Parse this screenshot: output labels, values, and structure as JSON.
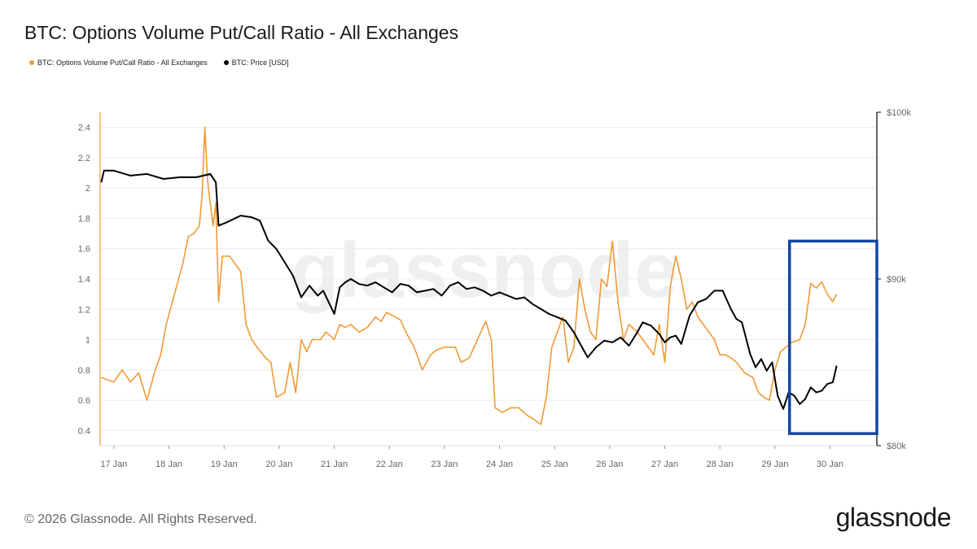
{
  "title": "BTC: Options Volume Put/Call Ratio - All Exchanges",
  "legend": {
    "ratio_label": "BTC: Options Volume Put/Call Ratio - All Exchanges",
    "price_label": "BTC: Price [USD]"
  },
  "watermark": "glassnode",
  "footer": {
    "copyright": "© 2026 Glassnode. All Rights Reserved.",
    "logo": "glassnode"
  },
  "colors": {
    "ratio": "#f09a37",
    "price": "#000000",
    "highlight": "#1546a0",
    "grid": "#ececec"
  },
  "chart_data": {
    "type": "line",
    "title": "BTC: Options Volume Put/Call Ratio - All Exchanges",
    "x_ticks": [
      "17 Jan",
      "18 Jan",
      "19 Jan",
      "20 Jan",
      "21 Jan",
      "22 Jan",
      "23 Jan",
      "24 Jan",
      "25 Jan",
      "26 Jan",
      "27 Jan",
      "28 Jan",
      "29 Jan",
      "30 Jan"
    ],
    "x_range": [
      16.75,
      30.85
    ],
    "y_left": {
      "label": "",
      "range": [
        0.3,
        2.5
      ],
      "ticks": [
        "0.4",
        "0.6",
        "0.8",
        "1",
        "1.2",
        "1.4",
        "1.6",
        "1.8",
        "2",
        "2.2",
        "2.4"
      ]
    },
    "y_right": {
      "label": "",
      "range": [
        80000,
        100000
      ],
      "ticks": [
        "$80k",
        "$90k",
        "$100k"
      ]
    },
    "highlight_box": {
      "x_range": [
        29.25,
        30.85
      ],
      "y_range": [
        0.38,
        1.65
      ],
      "note": "blue rectangle around latest data"
    },
    "series": [
      {
        "name": "BTC: Options Volume Put/Call Ratio - All Exchanges",
        "axis": "left",
        "points": [
          [
            16.77,
            0.75
          ],
          [
            17.0,
            0.72
          ],
          [
            17.15,
            0.8
          ],
          [
            17.3,
            0.72
          ],
          [
            17.45,
            0.78
          ],
          [
            17.6,
            0.6
          ],
          [
            17.75,
            0.8
          ],
          [
            17.85,
            0.9
          ],
          [
            17.95,
            1.1
          ],
          [
            18.1,
            1.3
          ],
          [
            18.25,
            1.5
          ],
          [
            18.35,
            1.68
          ],
          [
            18.45,
            1.7
          ],
          [
            18.55,
            1.75
          ],
          [
            18.6,
            1.95
          ],
          [
            18.65,
            2.4
          ],
          [
            18.7,
            2.05
          ],
          [
            18.8,
            1.75
          ],
          [
            18.85,
            1.9
          ],
          [
            18.9,
            1.25
          ],
          [
            18.97,
            1.55
          ],
          [
            19.1,
            1.55
          ],
          [
            19.2,
            1.5
          ],
          [
            19.3,
            1.45
          ],
          [
            19.4,
            1.1
          ],
          [
            19.5,
            1.0
          ],
          [
            19.6,
            0.95
          ],
          [
            19.75,
            0.88
          ],
          [
            19.85,
            0.85
          ],
          [
            19.95,
            0.62
          ],
          [
            20.1,
            0.65
          ],
          [
            20.2,
            0.85
          ],
          [
            20.3,
            0.65
          ],
          [
            20.4,
            1.0
          ],
          [
            20.5,
            0.92
          ],
          [
            20.6,
            1.0
          ],
          [
            20.75,
            1.0
          ],
          [
            20.85,
            1.05
          ],
          [
            21.0,
            1.0
          ],
          [
            21.1,
            1.1
          ],
          [
            21.2,
            1.08
          ],
          [
            21.3,
            1.1
          ],
          [
            21.45,
            1.05
          ],
          [
            21.6,
            1.08
          ],
          [
            21.75,
            1.15
          ],
          [
            21.85,
            1.12
          ],
          [
            21.95,
            1.18
          ],
          [
            22.1,
            1.15
          ],
          [
            22.2,
            1.13
          ],
          [
            22.3,
            1.05
          ],
          [
            22.45,
            0.95
          ],
          [
            22.6,
            0.8
          ],
          [
            22.75,
            0.9
          ],
          [
            22.85,
            0.93
          ],
          [
            23.0,
            0.95
          ],
          [
            23.2,
            0.95
          ],
          [
            23.3,
            0.85
          ],
          [
            23.45,
            0.88
          ],
          [
            23.6,
            1.0
          ],
          [
            23.75,
            1.12
          ],
          [
            23.85,
            1.0
          ],
          [
            23.92,
            0.55
          ],
          [
            24.05,
            0.52
          ],
          [
            24.2,
            0.55
          ],
          [
            24.35,
            0.55
          ],
          [
            24.5,
            0.5
          ],
          [
            24.6,
            0.48
          ],
          [
            24.75,
            0.44
          ],
          [
            24.85,
            0.62
          ],
          [
            24.95,
            0.95
          ],
          [
            25.05,
            1.05
          ],
          [
            25.15,
            1.15
          ],
          [
            25.25,
            0.85
          ],
          [
            25.35,
            0.95
          ],
          [
            25.45,
            1.4
          ],
          [
            25.55,
            1.2
          ],
          [
            25.65,
            1.05
          ],
          [
            25.75,
            1.0
          ],
          [
            25.85,
            1.4
          ],
          [
            25.95,
            1.35
          ],
          [
            26.05,
            1.65
          ],
          [
            26.15,
            1.25
          ],
          [
            26.25,
            1.0
          ],
          [
            26.35,
            1.1
          ],
          [
            26.5,
            1.05
          ],
          [
            26.6,
            1.0
          ],
          [
            26.7,
            0.95
          ],
          [
            26.8,
            0.9
          ],
          [
            26.9,
            1.1
          ],
          [
            27.0,
            0.85
          ],
          [
            27.1,
            1.35
          ],
          [
            27.2,
            1.55
          ],
          [
            27.3,
            1.4
          ],
          [
            27.4,
            1.2
          ],
          [
            27.5,
            1.25
          ],
          [
            27.6,
            1.15
          ],
          [
            27.7,
            1.1
          ],
          [
            27.8,
            1.05
          ],
          [
            27.9,
            1.0
          ],
          [
            28.0,
            0.9
          ],
          [
            28.1,
            0.9
          ],
          [
            28.2,
            0.88
          ],
          [
            28.3,
            0.85
          ],
          [
            28.45,
            0.78
          ],
          [
            28.6,
            0.75
          ],
          [
            28.7,
            0.65
          ],
          [
            28.8,
            0.62
          ],
          [
            28.9,
            0.6
          ],
          [
            29.0,
            0.8
          ],
          [
            29.1,
            0.92
          ],
          [
            29.2,
            0.95
          ],
          [
            29.3,
            0.98
          ],
          [
            29.45,
            1.0
          ],
          [
            29.55,
            1.1
          ],
          [
            29.65,
            1.37
          ],
          [
            29.75,
            1.34
          ],
          [
            29.85,
            1.38
          ],
          [
            29.95,
            1.3
          ],
          [
            30.05,
            1.25
          ],
          [
            30.12,
            1.3
          ]
        ]
      },
      {
        "name": "BTC: Price [USD]",
        "axis": "right",
        "points": [
          [
            16.77,
            95800
          ],
          [
            16.82,
            96500
          ],
          [
            17.0,
            96500
          ],
          [
            17.3,
            96200
          ],
          [
            17.6,
            96300
          ],
          [
            17.9,
            96000
          ],
          [
            18.2,
            96100
          ],
          [
            18.5,
            96100
          ],
          [
            18.75,
            96300
          ],
          [
            18.85,
            95800
          ],
          [
            18.9,
            93200
          ],
          [
            19.05,
            93400
          ],
          [
            19.3,
            93800
          ],
          [
            19.5,
            93700
          ],
          [
            19.65,
            93500
          ],
          [
            19.8,
            92300
          ],
          [
            19.95,
            91800
          ],
          [
            20.1,
            91000
          ],
          [
            20.25,
            90200
          ],
          [
            20.4,
            88900
          ],
          [
            20.55,
            89600
          ],
          [
            20.7,
            89000
          ],
          [
            20.8,
            89300
          ],
          [
            20.9,
            88600
          ],
          [
            21.0,
            87900
          ],
          [
            21.1,
            89500
          ],
          [
            21.2,
            89800
          ],
          [
            21.3,
            90000
          ],
          [
            21.45,
            89700
          ],
          [
            21.6,
            89600
          ],
          [
            21.75,
            89800
          ],
          [
            21.9,
            89500
          ],
          [
            22.05,
            89200
          ],
          [
            22.2,
            89700
          ],
          [
            22.35,
            89600
          ],
          [
            22.5,
            89200
          ],
          [
            22.65,
            89300
          ],
          [
            22.8,
            89400
          ],
          [
            22.95,
            89000
          ],
          [
            23.1,
            89600
          ],
          [
            23.25,
            89800
          ],
          [
            23.4,
            89400
          ],
          [
            23.55,
            89500
          ],
          [
            23.7,
            89300
          ],
          [
            23.85,
            89000
          ],
          [
            24.0,
            89200
          ],
          [
            24.15,
            89000
          ],
          [
            24.3,
            88800
          ],
          [
            24.45,
            88900
          ],
          [
            24.6,
            88500
          ],
          [
            24.75,
            88200
          ],
          [
            24.9,
            87900
          ],
          [
            25.05,
            87700
          ],
          [
            25.2,
            87500
          ],
          [
            25.35,
            86800
          ],
          [
            25.5,
            85900
          ],
          [
            25.6,
            85300
          ],
          [
            25.75,
            85900
          ],
          [
            25.9,
            86300
          ],
          [
            26.05,
            86200
          ],
          [
            26.2,
            86500
          ],
          [
            26.35,
            86000
          ],
          [
            26.5,
            86800
          ],
          [
            26.6,
            87400
          ],
          [
            26.75,
            87200
          ],
          [
            26.9,
            86700
          ],
          [
            27.0,
            86200
          ],
          [
            27.1,
            86500
          ],
          [
            27.2,
            86600
          ],
          [
            27.3,
            86100
          ],
          [
            27.45,
            87800
          ],
          [
            27.6,
            88600
          ],
          [
            27.75,
            88800
          ],
          [
            27.9,
            89300
          ],
          [
            28.05,
            89300
          ],
          [
            28.2,
            88200
          ],
          [
            28.3,
            87600
          ],
          [
            28.4,
            87400
          ],
          [
            28.55,
            85500
          ],
          [
            28.65,
            84700
          ],
          [
            28.75,
            85200
          ],
          [
            28.85,
            84500
          ],
          [
            28.95,
            85000
          ],
          [
            29.05,
            83000
          ],
          [
            29.15,
            82200
          ],
          [
            29.25,
            83200
          ],
          [
            29.35,
            83000
          ],
          [
            29.45,
            82500
          ],
          [
            29.55,
            82800
          ],
          [
            29.65,
            83500
          ],
          [
            29.75,
            83200
          ],
          [
            29.85,
            83300
          ],
          [
            29.95,
            83700
          ],
          [
            30.05,
            83800
          ],
          [
            30.12,
            84800
          ]
        ]
      }
    ]
  }
}
